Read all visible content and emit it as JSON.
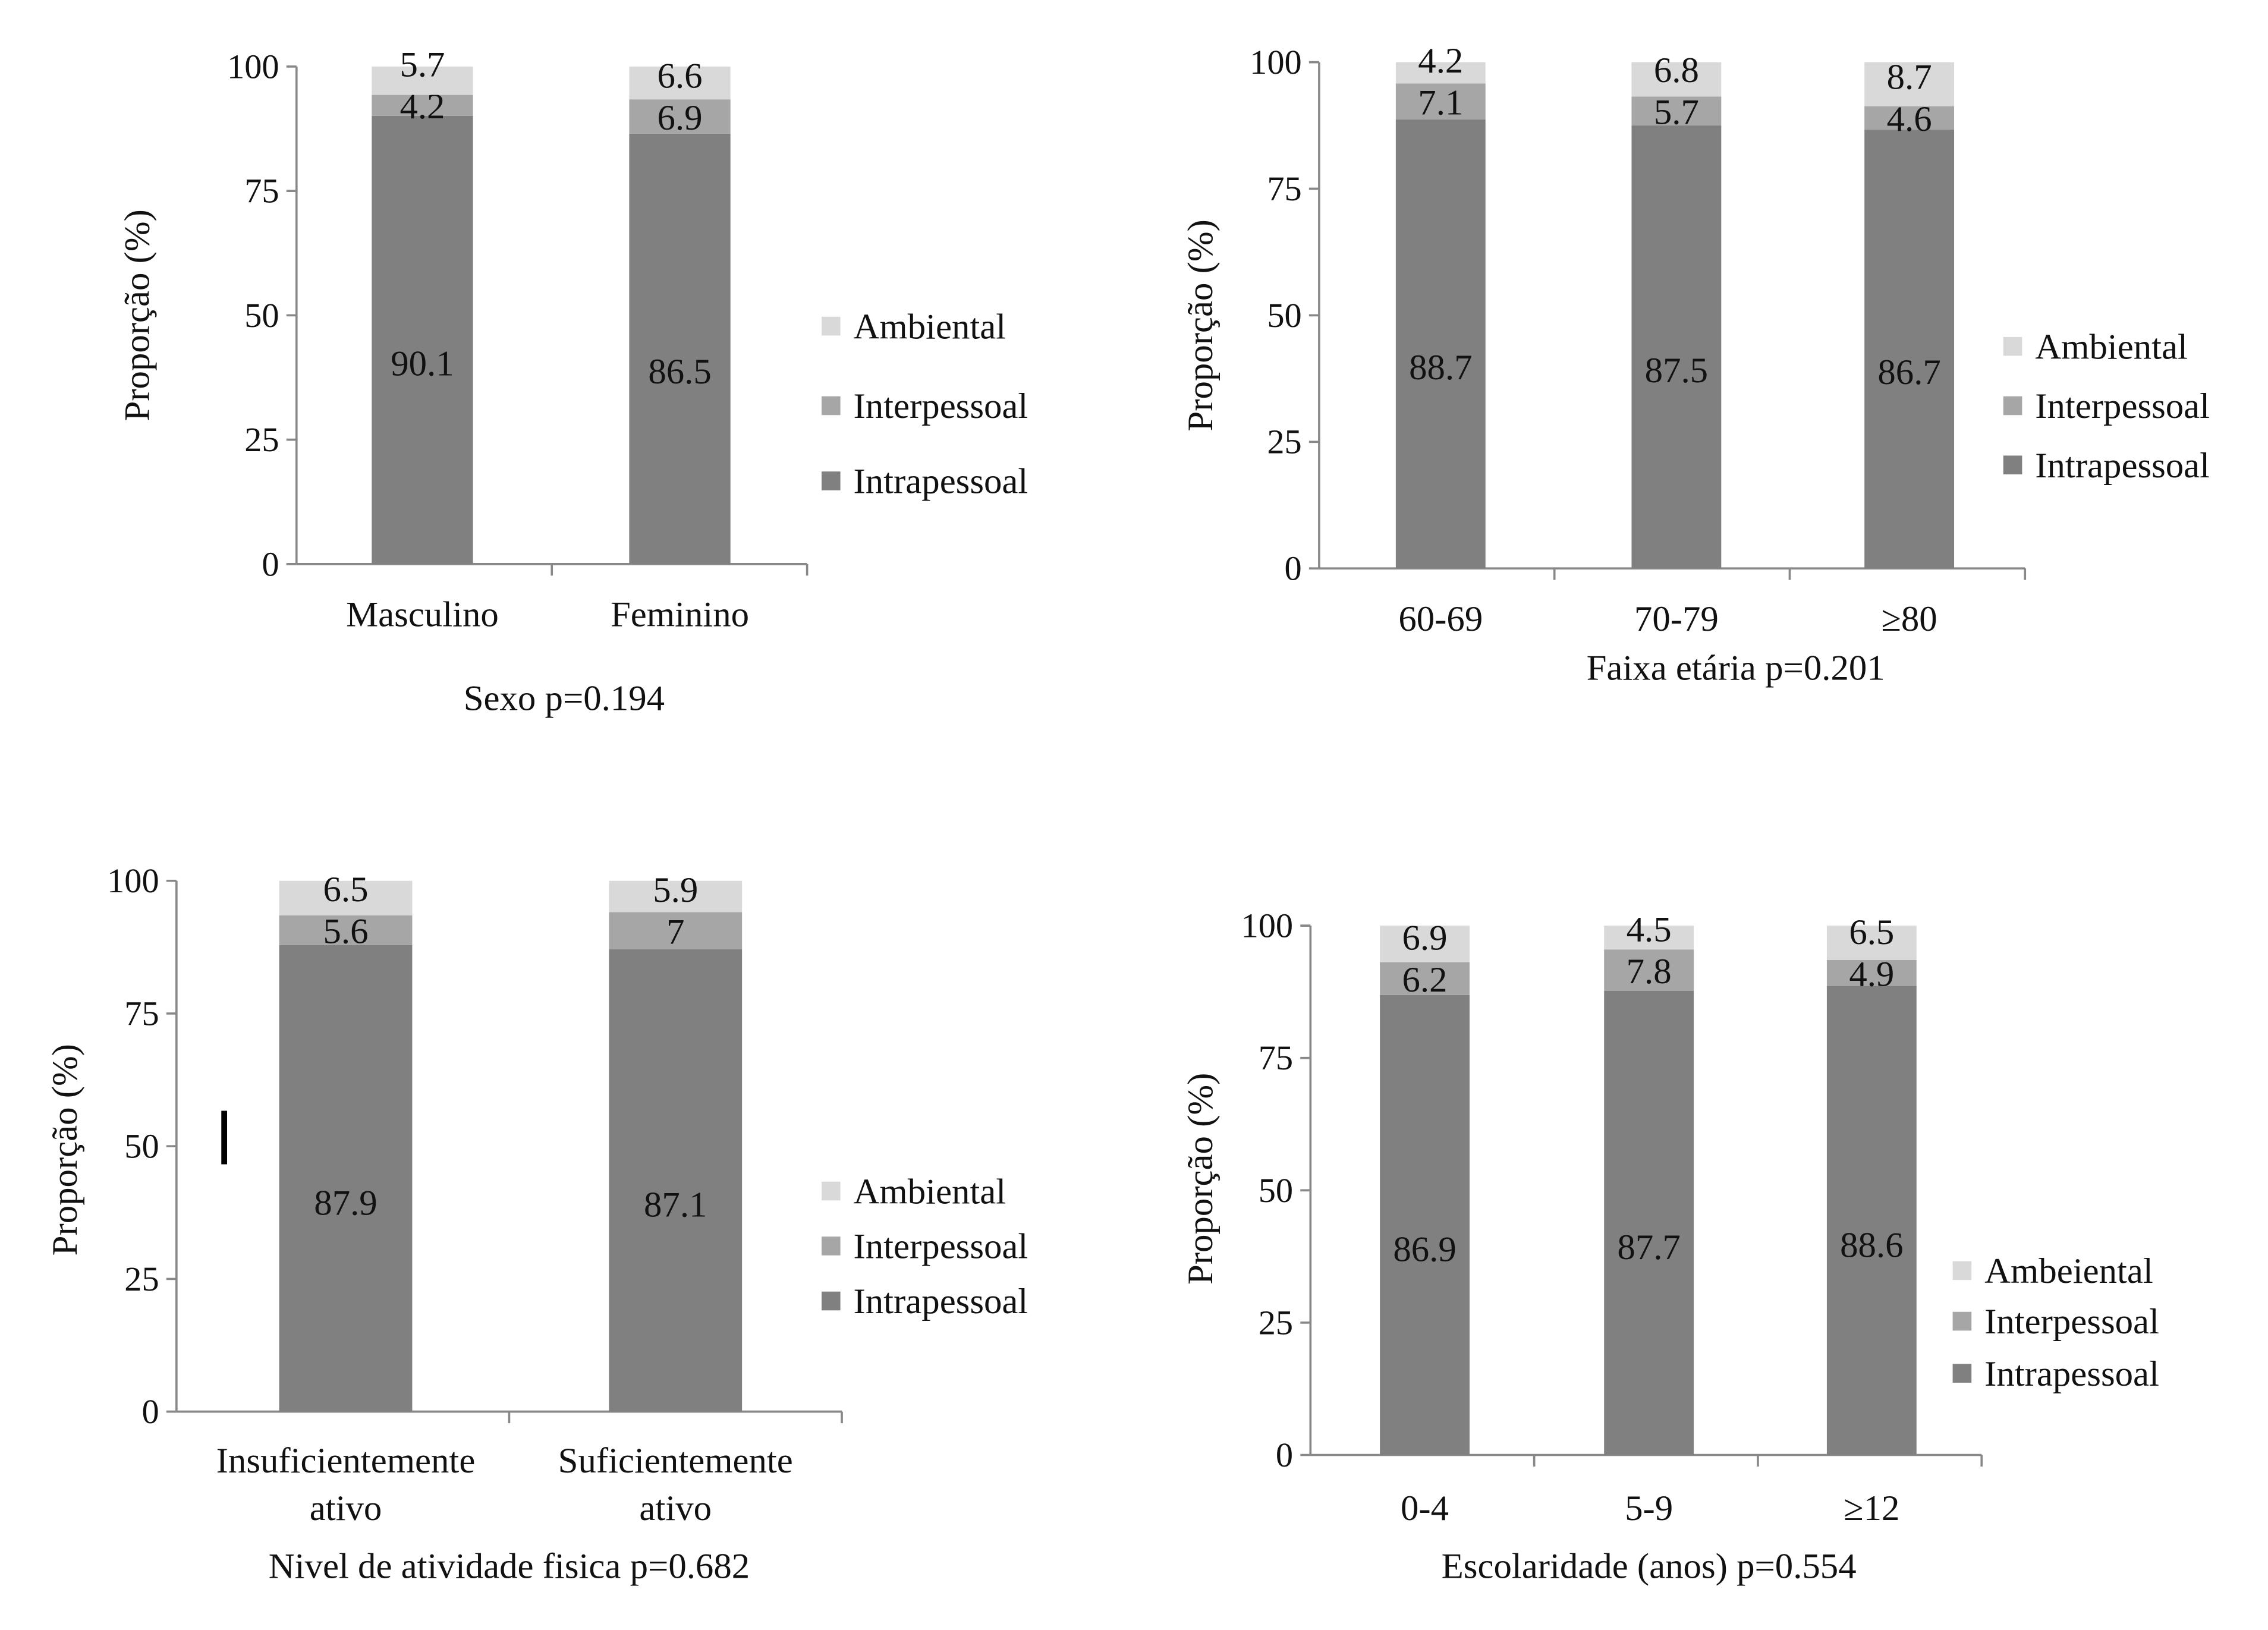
{
  "colors": {
    "Intrapessoal": "#808080",
    "Interpessoal": "#a6a6a6",
    "Ambiental": "#d9d9d9"
  },
  "chart_data": [
    {
      "type": "bar",
      "stacked": true,
      "title": "Sexo p=0.194",
      "ylabel": "Proporção (%)",
      "ylim": [
        0,
        100
      ],
      "yticks": [
        "0",
        "25",
        "50",
        "75",
        "100"
      ],
      "categories": [
        [
          "Masculino"
        ],
        [
          "Feminino"
        ]
      ],
      "legend": [
        "Ambiental",
        "Interpessoal",
        "Intrapessoal"
      ],
      "legend_position": "right",
      "series": [
        {
          "name": "Intrapessoal",
          "values": [
            90.1,
            86.5
          ],
          "labels": [
            "90.1",
            "86.5"
          ]
        },
        {
          "name": "Interpessoal",
          "values": [
            4.2,
            6.9
          ],
          "labels": [
            "4.2",
            "6.9"
          ]
        },
        {
          "name": "Ambiental",
          "values": [
            5.7,
            6.6
          ],
          "labels": [
            "5.7",
            "6.6"
          ]
        }
      ]
    },
    {
      "type": "bar",
      "stacked": true,
      "title": "Faixa etária p=0.201",
      "ylabel": "Proporção (%)",
      "ylim": [
        0,
        100
      ],
      "yticks": [
        "0",
        "25",
        "50",
        "75",
        "100"
      ],
      "categories": [
        [
          "60-69"
        ],
        [
          "70-79"
        ],
        [
          "≥80"
        ]
      ],
      "legend": [
        "Ambiental",
        "Interpessoal",
        "Intrapessoal"
      ],
      "legend_position": "right",
      "series": [
        {
          "name": "Intrapessoal",
          "values": [
            88.7,
            87.5,
            86.7
          ],
          "labels": [
            "88.7",
            "87.5",
            "86.7"
          ]
        },
        {
          "name": "Interpessoal",
          "values": [
            7.1,
            5.7,
            4.6
          ],
          "labels": [
            "7.1",
            "5.7",
            "4.6"
          ]
        },
        {
          "name": "Ambiental",
          "values": [
            4.2,
            6.8,
            8.7
          ],
          "labels": [
            "4.2",
            "6.8",
            "8.7"
          ]
        }
      ]
    },
    {
      "type": "bar",
      "stacked": true,
      "title": "Nivel de atividade fisica p=0.682",
      "ylabel": "Proporção (%)",
      "ylim": [
        0,
        100
      ],
      "yticks": [
        "0",
        "25",
        "50",
        "75",
        "100"
      ],
      "categories": [
        [
          "Insuficientemente",
          "ativo"
        ],
        [
          "Suficientemente",
          "ativo"
        ]
      ],
      "legend": [
        "Ambiental",
        "Interpessoal",
        "Intrapessoal"
      ],
      "legend_position": "right",
      "series": [
        {
          "name": "Intrapessoal",
          "values": [
            87.9,
            87.1
          ],
          "labels": [
            "87.9",
            "87.1"
          ]
        },
        {
          "name": "Interpessoal",
          "values": [
            5.6,
            7
          ],
          "labels": [
            "5.6",
            "7"
          ]
        },
        {
          "name": "Ambiental",
          "values": [
            6.5,
            5.9
          ],
          "labels": [
            "6.5",
            "5.9"
          ]
        }
      ]
    },
    {
      "type": "bar",
      "stacked": true,
      "title": "Escolaridade (anos) p=0.554",
      "ylabel": "Proporção (%)",
      "ylim": [
        0,
        100
      ],
      "yticks": [
        "0",
        "25",
        "50",
        "75",
        "100"
      ],
      "categories": [
        [
          "0-4"
        ],
        [
          "5-9"
        ],
        [
          "≥12"
        ]
      ],
      "legend": [
        "Ambeiental",
        "Interpessoal",
        "Intrapessoal"
      ],
      "legend_position": "right",
      "series": [
        {
          "name": "Intrapessoal",
          "values": [
            86.9,
            87.7,
            88.6
          ],
          "labels": [
            "86.9",
            "87.7",
            "88.6"
          ]
        },
        {
          "name": "Interpessoal",
          "values": [
            6.2,
            7.8,
            4.9
          ],
          "labels": [
            "6.2",
            "7.8",
            "4.9"
          ]
        },
        {
          "name": "Ambiental",
          "values": [
            6.9,
            4.5,
            6.5
          ],
          "labels": [
            "6.9",
            "4.5",
            "6.5"
          ]
        }
      ]
    }
  ]
}
